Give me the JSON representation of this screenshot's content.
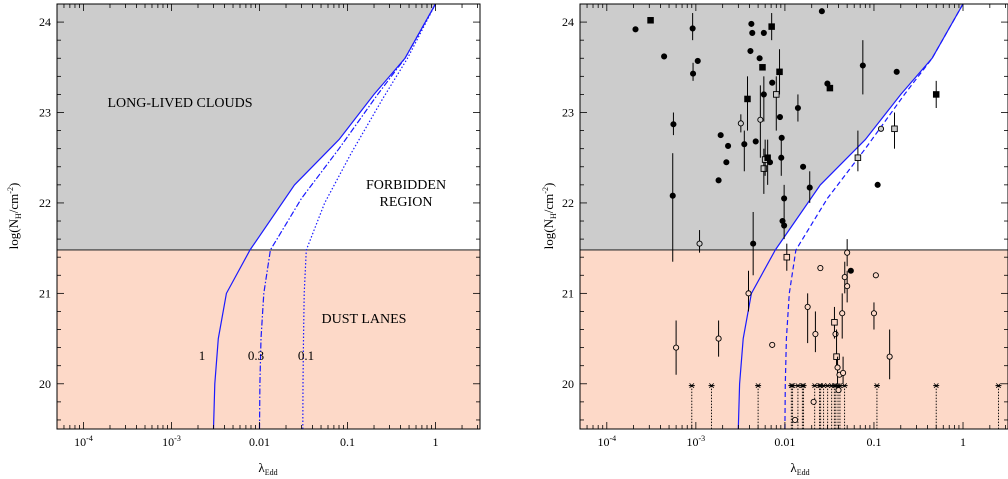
{
  "chart_data": [
    {
      "type": "line",
      "xlabel": "λEdd",
      "xlabel_main": "λ",
      "xlabel_sub": "Edd",
      "ylabel": "log(NH/cm-2)",
      "ylabel_pre": "log(N",
      "ylabel_sub": "H",
      "ylabel_mid": "/cm",
      "ylabel_sup": "-2",
      "ylabel_post": ")",
      "x_scale": "log",
      "xlim": [
        5e-05,
        3.2
      ],
      "ylim": [
        19.5,
        24.2
      ],
      "x_ticks": [
        {
          "value": 0.0001,
          "base": "10",
          "exp": "-4"
        },
        {
          "value": 0.001,
          "base": "10",
          "exp": "-3"
        },
        {
          "value": 0.01,
          "base": "0.01",
          "exp": ""
        },
        {
          "value": 0.1,
          "base": "0.1",
          "exp": ""
        },
        {
          "value": 1,
          "base": "1",
          "exp": ""
        }
      ],
      "y_ticks": [
        "20",
        "21",
        "22",
        "23",
        "24"
      ],
      "threshold_logNH": 21.48,
      "region_colors": {
        "clouds": "#cccccc",
        "dust": "#fdd9c8",
        "curve": "#1a1aff"
      },
      "region_labels": {
        "long_lived": "LONG-LIVED CLOUDS",
        "forbidden_1": "FORBIDDEN",
        "forbidden_2": "REGION",
        "dust": "DUST LANES"
      },
      "series": [
        {
          "name": "1",
          "style": "solid",
          "points": [
            [
              0.003,
              19.5
            ],
            [
              0.0031,
              20.0
            ],
            [
              0.0034,
              20.5
            ],
            [
              0.0042,
              21.0
            ],
            [
              0.0078,
              21.48
            ],
            [
              0.025,
              22.2
            ],
            [
              0.08,
              22.7
            ],
            [
              0.2,
              23.2
            ],
            [
              0.45,
              23.6
            ],
            [
              1.0,
              24.2
            ]
          ]
        },
        {
          "name": "0.3",
          "style": "dashdot",
          "points": [
            [
              0.01,
              19.5
            ],
            [
              0.0101,
              20.0
            ],
            [
              0.0104,
              20.5
            ],
            [
              0.0112,
              21.0
            ],
            [
              0.0133,
              21.48
            ],
            [
              0.03,
              22.05
            ],
            [
              0.08,
              22.6
            ],
            [
              0.22,
              23.2
            ],
            [
              0.45,
              23.6
            ],
            [
              1.0,
              24.2
            ]
          ]
        },
        {
          "name": "0.1",
          "style": "dotted",
          "points": [
            [
              0.031,
              19.5
            ],
            [
              0.0312,
              20.0
            ],
            [
              0.0316,
              20.5
            ],
            [
              0.0322,
              21.0
            ],
            [
              0.034,
              21.48
            ],
            [
              0.055,
              22.0
            ],
            [
              0.11,
              22.55
            ],
            [
              0.25,
              23.15
            ],
            [
              0.48,
              23.6
            ],
            [
              1.0,
              24.2
            ]
          ]
        }
      ]
    },
    {
      "type": "scatter",
      "xlabel": "λEdd",
      "xlabel_main": "λ",
      "xlabel_sub": "Edd",
      "ylabel": "log(NH/cm-2)",
      "ylabel_pre": "log(N",
      "ylabel_sub": "H",
      "ylabel_mid": "/cm",
      "ylabel_sup": "-2",
      "ylabel_post": ")",
      "x_scale": "log",
      "xlim": [
        5e-05,
        3.2
      ],
      "ylim": [
        19.5,
        24.2
      ],
      "x_ticks": [
        {
          "value": 0.0001,
          "base": "10",
          "exp": "-4"
        },
        {
          "value": 0.001,
          "base": "10",
          "exp": "-3"
        },
        {
          "value": 0.01,
          "base": "0.01",
          "exp": ""
        },
        {
          "value": 0.1,
          "base": "0.1",
          "exp": ""
        },
        {
          "value": 1,
          "base": "1",
          "exp": ""
        }
      ],
      "y_ticks": [
        "20",
        "21",
        "22",
        "23",
        "24"
      ],
      "threshold_logNH": 21.48,
      "region_colors": {
        "clouds": "#cccccc",
        "dust": "#fdd9c8",
        "curve": "#1a1aff"
      },
      "series": [
        {
          "name": "1",
          "style": "solid",
          "points": [
            [
              0.003,
              19.5
            ],
            [
              0.0031,
              20.0
            ],
            [
              0.0034,
              20.5
            ],
            [
              0.0042,
              21.0
            ],
            [
              0.0078,
              21.48
            ],
            [
              0.025,
              22.2
            ],
            [
              0.08,
              22.7
            ],
            [
              0.2,
              23.2
            ],
            [
              0.45,
              23.6
            ],
            [
              1.0,
              24.2
            ]
          ]
        },
        {
          "name": "0.3",
          "style": "dashed",
          "points": [
            [
              0.01,
              19.5
            ],
            [
              0.0101,
              20.0
            ],
            [
              0.0104,
              20.5
            ],
            [
              0.0112,
              21.0
            ],
            [
              0.0133,
              21.48
            ],
            [
              0.03,
              22.05
            ],
            [
              0.08,
              22.6
            ],
            [
              0.22,
              23.2
            ],
            [
              0.45,
              23.6
            ],
            [
              1.0,
              24.2
            ]
          ]
        }
      ],
      "points": [
        {
          "x": 0.00021,
          "y": 23.92,
          "m": "fc"
        },
        {
          "x": 0.00031,
          "y": 24.02,
          "m": "fs"
        },
        {
          "x": 0.00044,
          "y": 23.62,
          "m": "fc"
        },
        {
          "x": 0.00056,
          "y": 22.87,
          "m": "fc",
          "lo": 22.75,
          "hi": 23.0
        },
        {
          "x": 0.00055,
          "y": 22.08,
          "m": "fc",
          "lo": 21.35,
          "hi": 22.55
        },
        {
          "x": 0.00092,
          "y": 23.93,
          "m": "fc",
          "lo": 23.8,
          "hi": 24.1
        },
        {
          "x": 0.00105,
          "y": 23.57,
          "m": "fc"
        },
        {
          "x": 0.00093,
          "y": 23.43,
          "m": "fc",
          "lo": 23.35,
          "hi": 23.55
        },
        {
          "x": 0.0018,
          "y": 22.25,
          "m": "fc"
        },
        {
          "x": 0.0019,
          "y": 22.75,
          "m": "fc"
        },
        {
          "x": 0.0022,
          "y": 22.45,
          "m": "fc"
        },
        {
          "x": 0.0023,
          "y": 22.63,
          "m": "fc"
        },
        {
          "x": 0.0032,
          "y": 22.88,
          "m": "oc",
          "lo": 22.78,
          "hi": 22.98
        },
        {
          "x": 0.0035,
          "y": 22.65,
          "m": "fc",
          "lo": 22.35,
          "hi": 22.8
        },
        {
          "x": 0.0038,
          "y": 23.15,
          "m": "fs",
          "lo": 22.8,
          "hi": 23.4
        },
        {
          "x": 0.0041,
          "y": 23.68,
          "m": "fc"
        },
        {
          "x": 0.0043,
          "y": 23.88,
          "m": "fc"
        },
        {
          "x": 0.0042,
          "y": 23.98,
          "m": "fc"
        },
        {
          "x": 0.0047,
          "y": 22.68,
          "m": "fc"
        },
        {
          "x": 0.0053,
          "y": 22.92,
          "m": "oc",
          "lo": 22.5,
          "hi": 23.3
        },
        {
          "x": 0.0052,
          "y": 23.6,
          "m": "fc"
        },
        {
          "x": 0.0056,
          "y": 23.5,
          "m": "fs"
        },
        {
          "x": 0.0058,
          "y": 23.88,
          "m": "fc"
        },
        {
          "x": 0.0058,
          "y": 23.2,
          "m": "fc",
          "lo": 22.9,
          "hi": 23.4
        },
        {
          "x": 0.0058,
          "y": 22.38,
          "m": "os",
          "lo": 22.1,
          "hi": 22.6
        },
        {
          "x": 0.006,
          "y": 22.48,
          "m": "os",
          "lo": 22.3,
          "hi": 22.7
        },
        {
          "x": 0.0064,
          "y": 22.5,
          "m": "fs",
          "lo": 22.2,
          "hi": 22.7
        },
        {
          "x": 0.0068,
          "y": 22.45,
          "m": "fc"
        },
        {
          "x": 0.0071,
          "y": 23.95,
          "m": "fs",
          "lo": 23.8,
          "hi": 24.1
        },
        {
          "x": 0.0072,
          "y": 23.33,
          "m": "fc"
        },
        {
          "x": 0.008,
          "y": 23.2,
          "m": "os",
          "lo": 22.8,
          "hi": 23.4
        },
        {
          "x": 0.0087,
          "y": 23.45,
          "m": "fs",
          "lo": 23.2,
          "hi": 23.7
        },
        {
          "x": 0.0088,
          "y": 22.95,
          "m": "fc"
        },
        {
          "x": 0.0091,
          "y": 22.5,
          "m": "fc",
          "lo": 22.3,
          "hi": 22.7
        },
        {
          "x": 0.0092,
          "y": 22.72,
          "m": "fc"
        },
        {
          "x": 0.0098,
          "y": 22.05,
          "m": "fc",
          "lo": 21.9,
          "hi": 22.2
        },
        {
          "x": 0.0098,
          "y": 21.75,
          "m": "fc",
          "lo": 21.6,
          "hi": 21.9
        },
        {
          "x": 0.0094,
          "y": 21.8,
          "m": "fc"
        },
        {
          "x": 0.0044,
          "y": 21.55,
          "m": "fc",
          "lo": 21.2,
          "hi": 21.9
        },
        {
          "x": 0.0011,
          "y": 21.55,
          "m": "oc",
          "lo": 21.45,
          "hi": 21.7
        },
        {
          "x": 0.014,
          "y": 23.05,
          "m": "fc",
          "lo": 22.9,
          "hi": 23.2
        },
        {
          "x": 0.016,
          "y": 22.4,
          "m": "fc"
        },
        {
          "x": 0.019,
          "y": 22.17,
          "m": "fc",
          "lo": 22.0,
          "hi": 22.35
        },
        {
          "x": 0.026,
          "y": 24.12,
          "m": "fc"
        },
        {
          "x": 0.03,
          "y": 23.32,
          "m": "fc"
        },
        {
          "x": 0.032,
          "y": 23.27,
          "m": "fs"
        },
        {
          "x": 0.066,
          "y": 22.5,
          "m": "os",
          "lo": 22.35,
          "hi": 22.8
        },
        {
          "x": 0.075,
          "y": 23.52,
          "m": "fc",
          "lo": 23.2,
          "hi": 23.8
        },
        {
          "x": 0.11,
          "y": 22.2,
          "m": "fc"
        },
        {
          "x": 0.12,
          "y": 22.82,
          "m": "oc"
        },
        {
          "x": 0.17,
          "y": 22.82,
          "m": "os",
          "lo": 22.6,
          "hi": 23.0
        },
        {
          "x": 0.18,
          "y": 23.45,
          "m": "fc"
        },
        {
          "x": 0.5,
          "y": 23.2,
          "m": "fs",
          "lo": 23.05,
          "hi": 23.35
        },
        {
          "x": 0.0006,
          "y": 20.4,
          "m": "oc",
          "lo": 20.1,
          "hi": 20.7
        },
        {
          "x": 0.0018,
          "y": 20.5,
          "m": "oc",
          "lo": 20.3,
          "hi": 20.7
        },
        {
          "x": 0.0039,
          "y": 21.0,
          "m": "oc",
          "lo": 20.8,
          "hi": 21.25
        },
        {
          "x": 0.0072,
          "y": 20.43,
          "m": "oc"
        },
        {
          "x": 0.0105,
          "y": 21.4,
          "m": "os",
          "lo": 21.25,
          "hi": 21.55
        },
        {
          "x": 0.013,
          "y": 19.6,
          "m": "oc"
        },
        {
          "x": 0.018,
          "y": 20.85,
          "m": "oc",
          "lo": 20.45,
          "hi": 21.0
        },
        {
          "x": 0.021,
          "y": 19.8,
          "m": "oc"
        },
        {
          "x": 0.022,
          "y": 20.55,
          "m": "oc",
          "lo": 20.35,
          "hi": 20.8
        },
        {
          "x": 0.025,
          "y": 21.28,
          "m": "oc"
        },
        {
          "x": 0.036,
          "y": 20.68,
          "m": "os",
          "lo": 20.5,
          "hi": 20.85
        },
        {
          "x": 0.037,
          "y": 20.55,
          "m": "oc"
        },
        {
          "x": 0.038,
          "y": 20.3,
          "m": "os",
          "lo": 20.2,
          "hi": 20.6
        },
        {
          "x": 0.039,
          "y": 20.18,
          "m": "oc",
          "lo": 20.0,
          "hi": 20.3
        },
        {
          "x": 0.04,
          "y": 19.93,
          "m": "oc"
        },
        {
          "x": 0.041,
          "y": 20.1,
          "m": "oc"
        },
        {
          "x": 0.044,
          "y": 20.78,
          "m": "oc",
          "lo": 20.5,
          "hi": 21.0
        },
        {
          "x": 0.045,
          "y": 20.12,
          "m": "oc",
          "lo": 20.0,
          "hi": 20.3
        },
        {
          "x": 0.047,
          "y": 21.18,
          "m": "oc",
          "lo": 21.0,
          "hi": 21.35
        },
        {
          "x": 0.05,
          "y": 21.08,
          "m": "oc",
          "lo": 20.9,
          "hi": 21.25
        },
        {
          "x": 0.05,
          "y": 21.45,
          "m": "oc",
          "lo": 21.3,
          "hi": 21.6
        },
        {
          "x": 0.055,
          "y": 21.25,
          "m": "fc"
        },
        {
          "x": 0.1,
          "y": 20.78,
          "m": "oc",
          "lo": 20.6,
          "hi": 20.9
        },
        {
          "x": 0.105,
          "y": 21.2,
          "m": "oc"
        },
        {
          "x": 0.15,
          "y": 20.3,
          "m": "oc",
          "lo": 20.05,
          "hi": 20.6
        }
      ],
      "upper_limits_x": [
        0.0009,
        0.0015,
        0.005,
        0.0118,
        0.0122,
        0.014,
        0.0157,
        0.0162,
        0.0216,
        0.0245,
        0.0252,
        0.0272,
        0.0302,
        0.0335,
        0.0359,
        0.0373,
        0.0395,
        0.0415,
        0.0468,
        0.108,
        0.5,
        2.5
      ],
      "upper_limit_y": 19.98
    }
  ]
}
